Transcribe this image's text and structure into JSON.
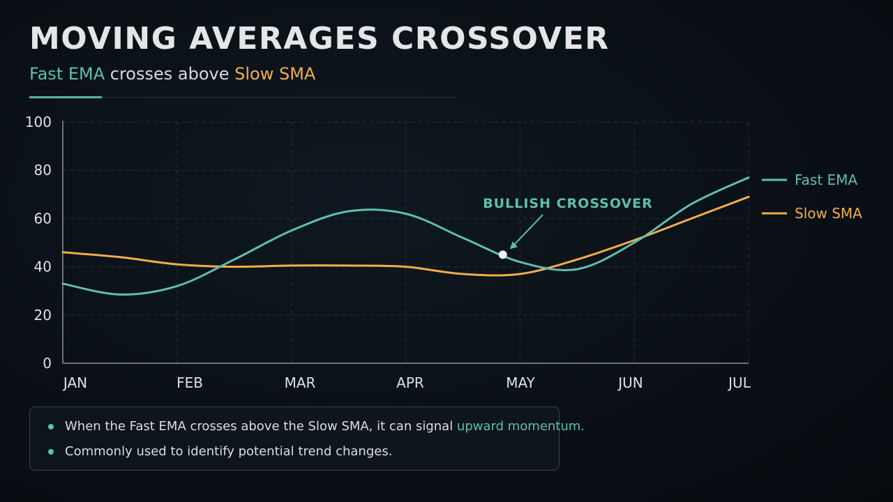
{
  "header": {
    "title": "MOVING AVERAGES CROSSOVER",
    "subtitle_fast": "Fast EMA",
    "subtitle_mid": " crosses above ",
    "subtitle_slow": "Slow SMA"
  },
  "colors": {
    "fast": "#5fbfae",
    "slow": "#f2ad4c",
    "grid": "#2a333b",
    "text": "#dfe1e3"
  },
  "chart_data": {
    "type": "line",
    "title": "MOVING AVERAGES CROSSOVER",
    "subtitle": "Fast EMA crosses above Slow SMA",
    "x": [
      0,
      0.5,
      1,
      1.5,
      2,
      2.5,
      3,
      3.5,
      4,
      4.5,
      5,
      5.5,
      6
    ],
    "categories": [
      "JAN",
      "FEB",
      "MAR",
      "APR",
      "MAY",
      "JUN",
      "JUL"
    ],
    "ylim": [
      0,
      100
    ],
    "yticks": [
      0,
      20,
      40,
      60,
      80,
      100
    ],
    "grid": true,
    "legend_position": "right",
    "series": [
      {
        "name": "Fast EMA",
        "color": "#5fbfae",
        "values": [
          33,
          28.5,
          32,
          43,
          55,
          63,
          62,
          52,
          42,
          39,
          50,
          66,
          77
        ]
      },
      {
        "name": "Slow SMA",
        "color": "#f2ad4c",
        "values": [
          46,
          44,
          41,
          40,
          40.5,
          40.5,
          40,
          37,
          37,
          43,
          51,
          60,
          69
        ]
      }
    ],
    "annotation": {
      "label": "BULLISH CROSSOVER",
      "x": 3.85,
      "y": 45
    }
  },
  "notes": {
    "item1_text": "When the Fast EMA crosses above the Slow SMA, it can signal ",
    "item1_highlight": "upward momentum.",
    "item2_text": "Commonly used to identify potential trend changes."
  }
}
